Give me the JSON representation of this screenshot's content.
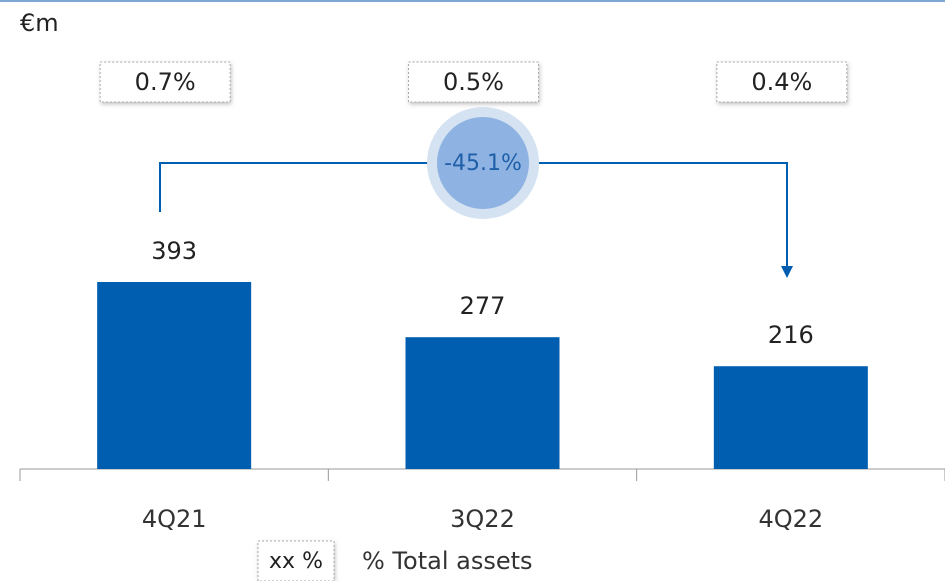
{
  "chart_data": {
    "type": "bar",
    "unit": "€m",
    "categories": [
      "4Q21",
      "3Q22",
      "4Q22"
    ],
    "values": [
      393,
      277,
      216
    ],
    "color": "#005eb0",
    "share_labels": [
      "0.7%",
      "0.5%",
      "0.4%"
    ],
    "change_label": "-45.1%",
    "legend": {
      "box": "xx %",
      "label": "% Total assets"
    }
  }
}
